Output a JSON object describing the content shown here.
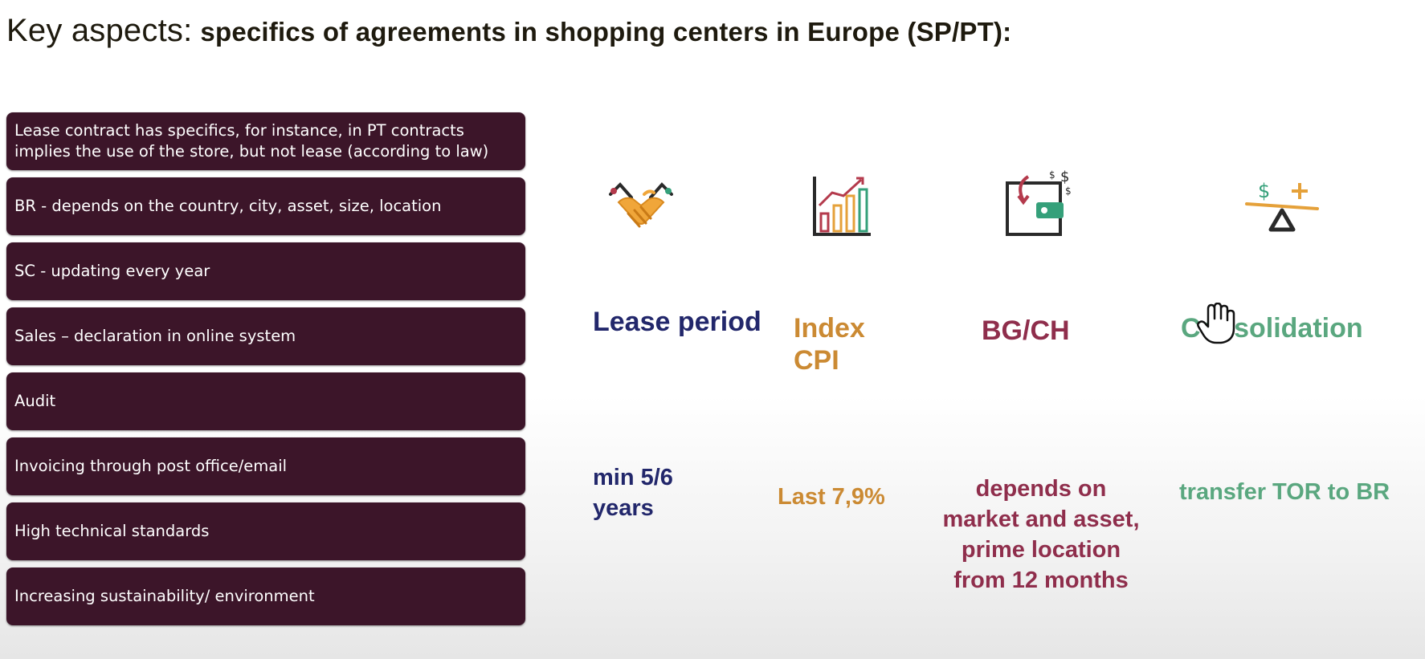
{
  "title": {
    "main": "Key aspects:",
    "sub": "specifics of agreements in shopping centers in Europe (SP/PT):"
  },
  "items": [
    "Lease contract has specifics, for instance, in PT contracts implies the use of the store, but not lease (according to law)",
    "BR - depends on the country, city, asset, size, location",
    "SC -  updating every year",
    "Sales – declaration in online system",
    "Audit",
    "Invoicing through post office/email",
    "High technical standards",
    "Increasing sustainability/ environment"
  ],
  "aspects": [
    {
      "icon": "handshake-icon",
      "heading": "Lease period",
      "value": "min 5/6 years"
    },
    {
      "icon": "growth-chart-icon",
      "heading": "Index CPI",
      "value": "Last 7,9%"
    },
    {
      "icon": "wallet-money-icon",
      "heading": "BG/CH",
      "value": "depends on market and asset, prime location from 12 months"
    },
    {
      "icon": "balance-scale-icon",
      "heading": "Consolidation",
      "value": "transfer TOR to BR"
    }
  ],
  "colors": {
    "item_background": "#3c1529",
    "navy": "#22276b",
    "orange": "#cb8a33",
    "maroon": "#8f2e4c",
    "green": "#5aa77f"
  },
  "cursor": {
    "icon": "hand-cursor-icon"
  }
}
